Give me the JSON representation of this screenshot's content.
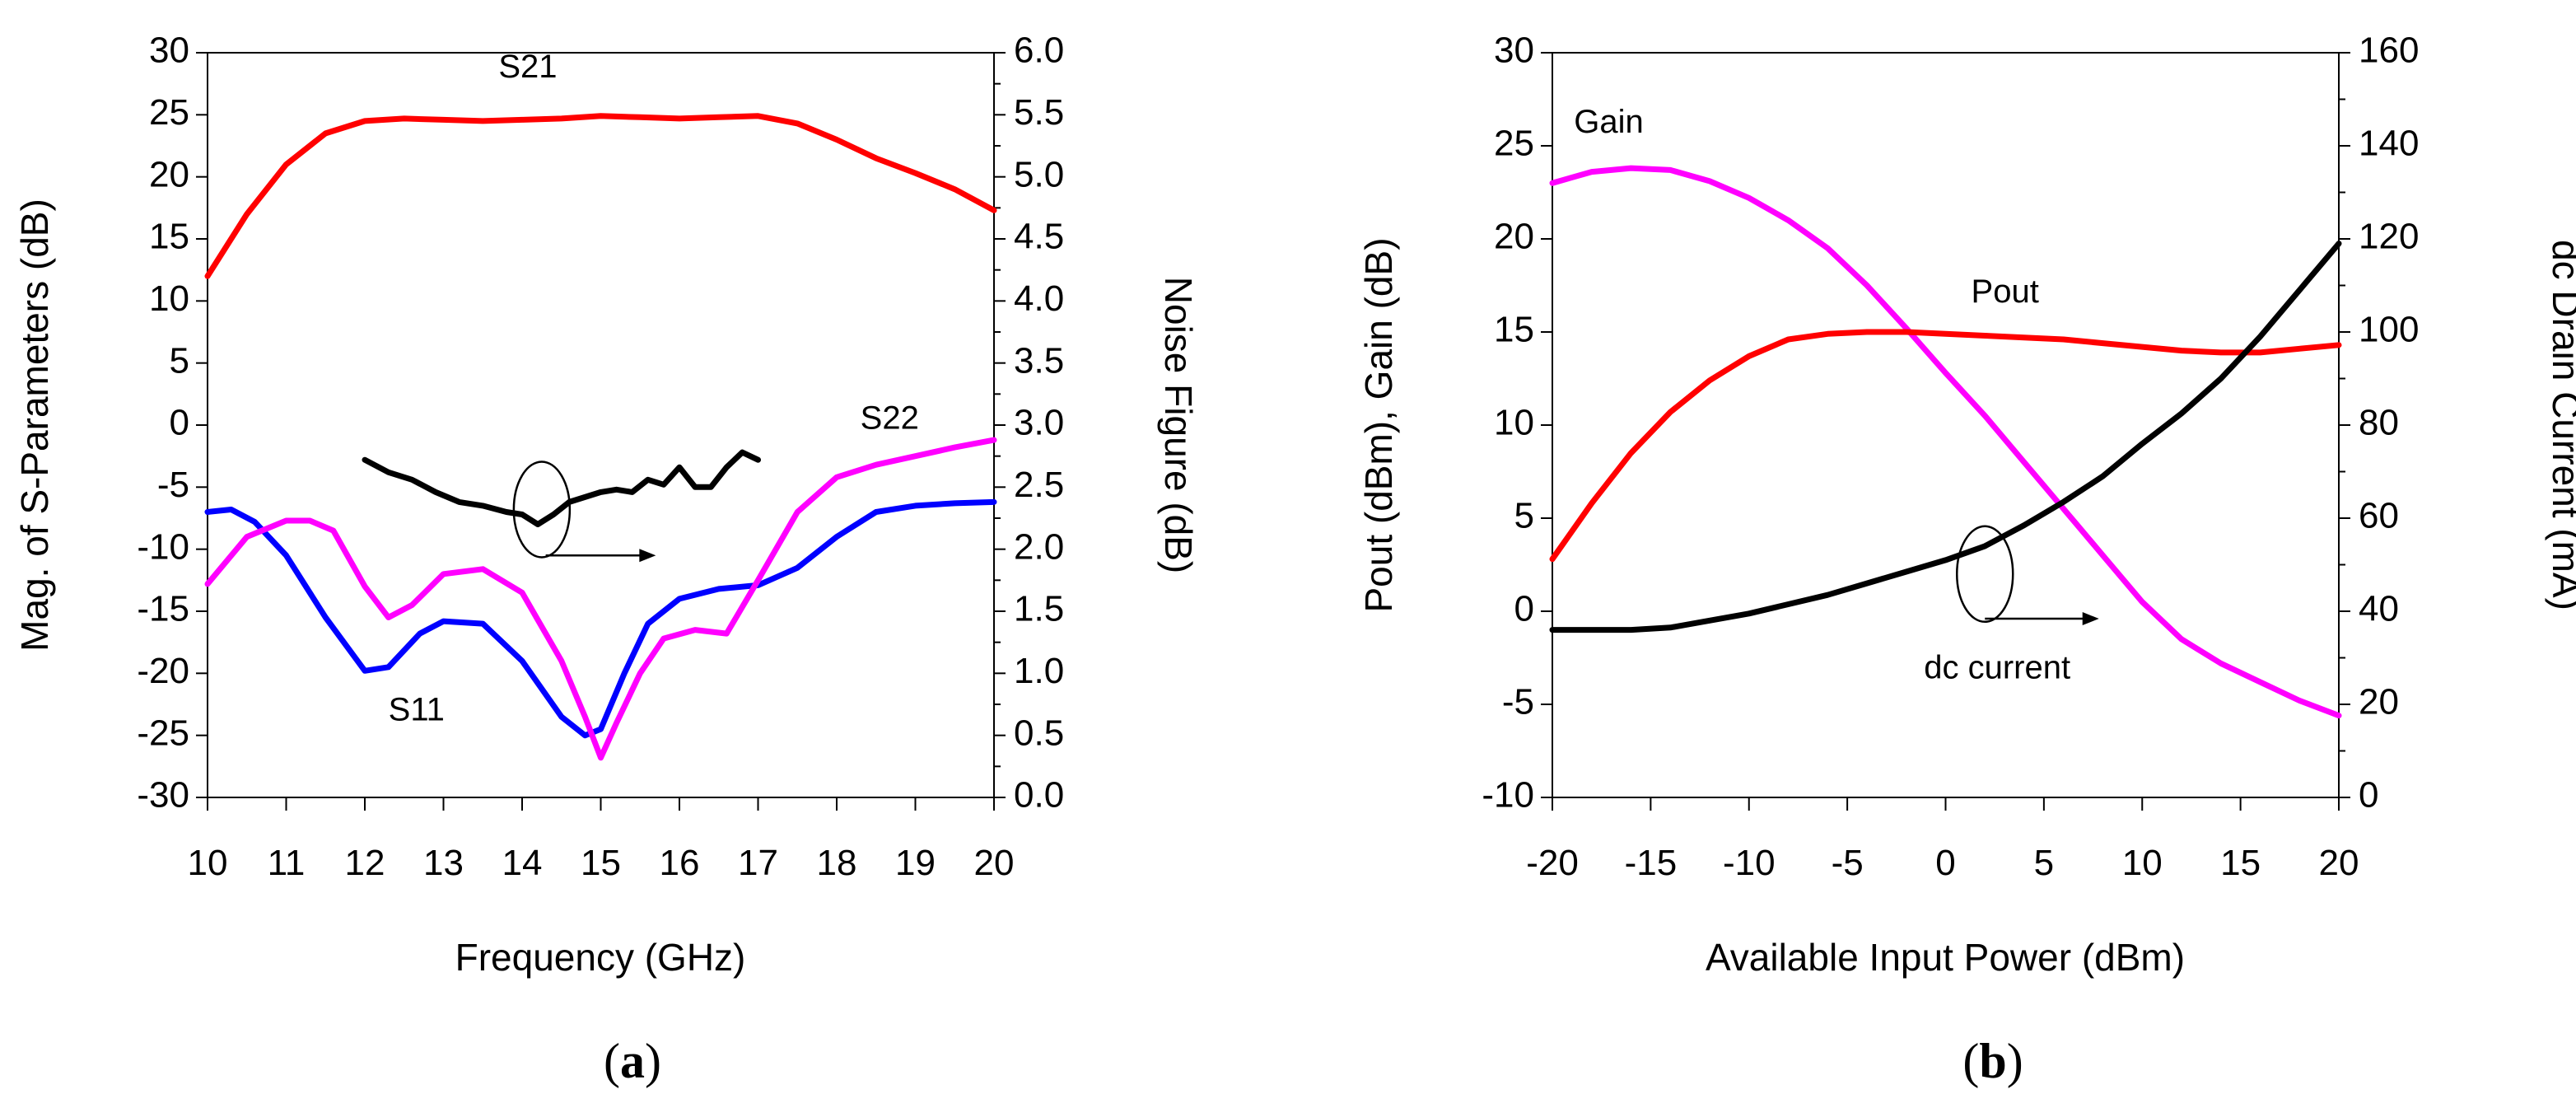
{
  "chart_data": [
    {
      "type": "line",
      "panel": "a",
      "caption_open": "(",
      "caption_letter": "a",
      "caption_close": ")",
      "xlabel": "Frequency (GHz)",
      "ylabel": "Mag. of S-Parameters (dB)",
      "y2label": "Noise Figure (dB)",
      "xlim": [
        10,
        20
      ],
      "ylim": [
        -30,
        30
      ],
      "y2lim": [
        0.0,
        6.0
      ],
      "xticks": [
        "10",
        "11",
        "12",
        "13",
        "14",
        "15",
        "16",
        "17",
        "18",
        "19",
        "20"
      ],
      "yticks": [
        "-30",
        "-25",
        "-20",
        "-15",
        "-10",
        "-5",
        "0",
        "5",
        "10",
        "15",
        "20",
        "25",
        "30"
      ],
      "y2ticks": [
        "0.0",
        "0.5",
        "1.0",
        "1.5",
        "2.0",
        "2.5",
        "3.0",
        "3.5",
        "4.0",
        "4.5",
        "5.0",
        "5.5",
        "6.0"
      ],
      "series": [
        {
          "name": "S21",
          "color": "#ff0000",
          "axis": "left",
          "x": [
            10,
            10.5,
            11,
            11.5,
            12,
            12.5,
            13,
            13.5,
            14,
            14.5,
            15,
            15.5,
            16,
            16.5,
            17,
            17.5,
            18,
            18.5,
            19,
            19.5,
            20
          ],
          "y": [
            12,
            17,
            21,
            23.5,
            24.5,
            24.7,
            24.6,
            24.5,
            24.6,
            24.7,
            24.9,
            24.8,
            24.7,
            24.8,
            24.9,
            24.3,
            23,
            21.5,
            20.3,
            19,
            17.3
          ]
        },
        {
          "name": "S11",
          "color": "#0000ff",
          "axis": "left",
          "x": [
            10,
            10.3,
            10.6,
            11,
            11.5,
            12,
            12.3,
            12.7,
            13,
            13.5,
            14,
            14.5,
            14.8,
            15,
            15.3,
            15.6,
            16,
            16.5,
            17,
            17.5,
            18,
            18.5,
            19,
            19.5,
            20
          ],
          "y": [
            -7,
            -6.8,
            -7.8,
            -10.5,
            -15.5,
            -19.8,
            -19.5,
            -16.8,
            -15.8,
            -16,
            -19,
            -23.5,
            -25,
            -24.5,
            -20,
            -16,
            -14,
            -13.2,
            -12.9,
            -11.5,
            -9,
            -7,
            -6.5,
            -6.3,
            -6.2
          ]
        },
        {
          "name": "S22",
          "color": "#ff00ff",
          "axis": "left",
          "x": [
            10,
            10.5,
            11,
            11.3,
            11.6,
            12,
            12.3,
            12.6,
            13,
            13.5,
            14,
            14.5,
            14.8,
            15,
            15.2,
            15.5,
            15.8,
            16.2,
            16.6,
            17,
            17.5,
            18,
            18.5,
            19,
            19.5,
            20
          ],
          "y": [
            -12.8,
            -9,
            -7.7,
            -7.7,
            -8.5,
            -13,
            -15.5,
            -14.5,
            -12,
            -11.6,
            -13.5,
            -19,
            -23.5,
            -26.8,
            -24,
            -20,
            -17.2,
            -16.5,
            -16.8,
            -12.5,
            -7,
            -4.2,
            -3.2,
            -2.5,
            -1.8,
            -1.2
          ]
        },
        {
          "name": "Noise Figure",
          "color": "#000000",
          "axis": "right",
          "x": [
            12,
            12.3,
            12.6,
            12.9,
            13.2,
            13.5,
            13.8,
            14,
            14.2,
            14.4,
            14.6,
            14.8,
            15,
            15.2,
            15.4,
            15.6,
            15.8,
            16,
            16.2,
            16.4,
            16.6,
            16.8,
            17
          ],
          "y": [
            2.72,
            2.62,
            2.56,
            2.46,
            2.38,
            2.35,
            2.3,
            2.28,
            2.2,
            2.28,
            2.38,
            2.42,
            2.46,
            2.48,
            2.46,
            2.56,
            2.52,
            2.66,
            2.5,
            2.5,
            2.66,
            2.78,
            2.72
          ]
        }
      ],
      "labels": [
        "S21",
        "S11",
        "S22"
      ]
    },
    {
      "type": "line",
      "panel": "b",
      "caption_open": "(",
      "caption_letter": "b",
      "caption_close": ")",
      "xlabel": "Available Input Power (dBm)",
      "ylabel": "Pout (dBm), Gain (dB)",
      "y2label": "dc Drain Current (mA)",
      "xlim": [
        -20,
        20
      ],
      "ylim": [
        -10,
        30
      ],
      "y2lim": [
        0,
        160
      ],
      "xticks": [
        "-20",
        "-15",
        "-10",
        "-5",
        "0",
        "5",
        "10",
        "15",
        "20"
      ],
      "yticks": [
        "-10",
        "-5",
        "0",
        "5",
        "10",
        "15",
        "20",
        "25",
        "30"
      ],
      "y2ticks": [
        "0",
        "20",
        "40",
        "60",
        "80",
        "100",
        "120",
        "140",
        "160"
      ],
      "series": [
        {
          "name": "Gain",
          "color": "#ff00ff",
          "axis": "left",
          "x": [
            -20,
            -18,
            -16,
            -14,
            -12,
            -10,
            -8,
            -6,
            -4,
            -2,
            0,
            2,
            4,
            6,
            8,
            10,
            12,
            14,
            16,
            18,
            20
          ],
          "y": [
            23,
            23.6,
            23.8,
            23.7,
            23.1,
            22.2,
            21,
            19.5,
            17.5,
            15.2,
            12.8,
            10.5,
            8,
            5.5,
            3,
            0.5,
            -1.5,
            -2.8,
            -3.8,
            -4.8,
            -5.6
          ]
        },
        {
          "name": "Pout",
          "color": "#ff0000",
          "axis": "left",
          "x": [
            -20,
            -18,
            -16,
            -14,
            -12,
            -10,
            -8,
            -6,
            -4,
            -2,
            0,
            2,
            4,
            6,
            8,
            10,
            12,
            14,
            16,
            18,
            20
          ],
          "y": [
            2.8,
            5.8,
            8.5,
            10.7,
            12.4,
            13.7,
            14.6,
            14.9,
            15,
            15,
            14.9,
            14.8,
            14.7,
            14.6,
            14.4,
            14.2,
            14.0,
            13.9,
            13.9,
            14.1,
            14.3
          ]
        },
        {
          "name": "dc current",
          "color": "#000000",
          "axis": "right",
          "x": [
            -20,
            -18,
            -16,
            -14,
            -12,
            -10,
            -8,
            -6,
            -4,
            -2,
            0,
            2,
            4,
            6,
            8,
            10,
            12,
            14,
            16,
            18,
            20
          ],
          "y": [
            36,
            36,
            36,
            36.5,
            38,
            39.5,
            41.5,
            43.5,
            46,
            48.5,
            51,
            54,
            58.5,
            63.5,
            69,
            76,
            82.5,
            90,
            99,
            109,
            119
          ]
        }
      ],
      "labels": [
        "Gain",
        "Pout",
        "dc current"
      ]
    }
  ]
}
